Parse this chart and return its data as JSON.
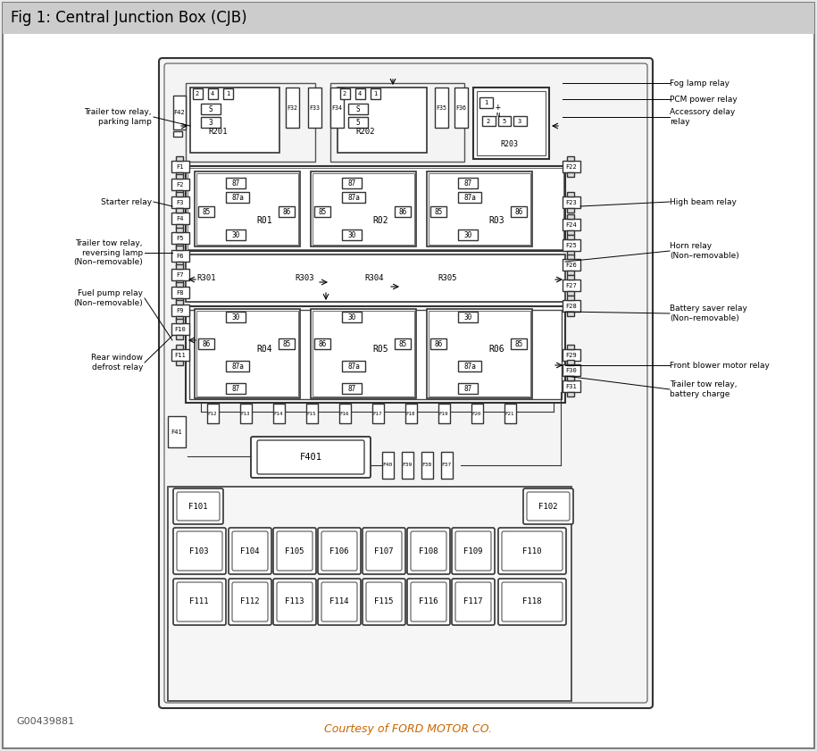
{
  "title": "Fig 1: Central Junction Box (CJB)",
  "courtesy_text": "Courtesy of FORD MOTOR CO.",
  "courtesy_color": "#cc6600",
  "watermark": "G00439881",
  "bg_outer": "#e8e8e8",
  "bg_inner": "#ffffff",
  "title_bg": "#c8c8c8",
  "box_ec": "#333333",
  "fuse_ec": "#444444"
}
